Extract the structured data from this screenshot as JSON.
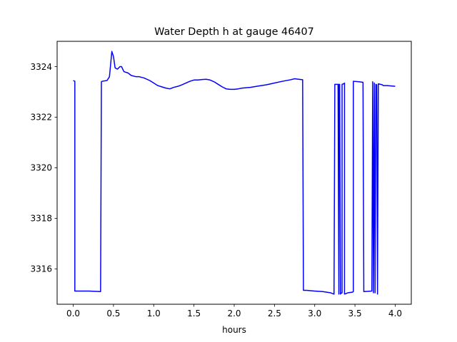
{
  "chart_data": {
    "type": "line",
    "title": "Water Depth h at gauge 46407",
    "xlabel": "hours",
    "ylabel": "",
    "xlim": [
      -0.2,
      4.2
    ],
    "ylim": [
      3314.6,
      3325.0
    ],
    "xticks": [
      0.0,
      0.5,
      1.0,
      1.5,
      2.0,
      2.5,
      3.0,
      3.5,
      4.0
    ],
    "xtick_labels": [
      "0.0",
      "0.5",
      "1.0",
      "1.5",
      "2.0",
      "2.5",
      "3.0",
      "3.5",
      "4.0"
    ],
    "yticks": [
      3316,
      3318,
      3320,
      3322,
      3324
    ],
    "ytick_labels": [
      "3316",
      "3318",
      "3320",
      "3322",
      "3324"
    ],
    "grid": false,
    "series": [
      {
        "color": "#0000ff",
        "x": [
          0.0,
          0.02,
          0.02,
          0.1,
          0.2,
          0.34,
          0.35,
          0.36,
          0.42,
          0.45,
          0.48,
          0.5,
          0.52,
          0.55,
          0.58,
          0.6,
          0.63,
          0.68,
          0.72,
          0.78,
          0.82,
          0.88,
          0.95,
          1.0,
          1.05,
          1.1,
          1.15,
          1.2,
          1.25,
          1.3,
          1.35,
          1.4,
          1.45,
          1.5,
          1.55,
          1.6,
          1.65,
          1.7,
          1.75,
          1.8,
          1.85,
          1.9,
          1.95,
          2.0,
          2.05,
          2.1,
          2.2,
          2.3,
          2.4,
          2.5,
          2.6,
          2.7,
          2.75,
          2.8,
          2.85,
          2.86,
          2.9,
          3.0,
          3.1,
          3.2,
          3.24,
          3.25,
          3.29,
          3.3,
          3.3,
          3.31,
          3.32,
          3.32,
          3.34,
          3.34,
          3.36,
          3.37,
          3.37,
          3.41,
          3.47,
          3.48,
          3.48,
          3.55,
          3.6,
          3.61,
          3.71,
          3.72,
          3.73,
          3.74,
          3.75,
          3.76,
          3.77,
          3.78,
          3.79,
          3.84,
          3.85,
          3.9,
          4.0
        ],
        "y": [
          3323.45,
          3323.42,
          3315.12,
          3315.12,
          3315.12,
          3315.1,
          3323.4,
          3323.42,
          3323.45,
          3323.6,
          3324.6,
          3324.4,
          3323.95,
          3323.9,
          3324.0,
          3324.0,
          3323.8,
          3323.75,
          3323.65,
          3323.6,
          3323.6,
          3323.55,
          3323.45,
          3323.35,
          3323.25,
          3323.2,
          3323.15,
          3323.12,
          3323.18,
          3323.22,
          3323.28,
          3323.35,
          3323.42,
          3323.47,
          3323.47,
          3323.49,
          3323.5,
          3323.47,
          3323.4,
          3323.3,
          3323.2,
          3323.12,
          3323.1,
          3323.1,
          3323.12,
          3323.15,
          3323.18,
          3323.23,
          3323.28,
          3323.35,
          3323.42,
          3323.48,
          3323.52,
          3323.5,
          3323.48,
          3315.15,
          3315.15,
          3315.12,
          3315.1,
          3315.05,
          3315.0,
          3323.3,
          3323.3,
          3315.0,
          3323.3,
          3323.3,
          3315.0,
          3315.02,
          3315.05,
          3323.3,
          3323.32,
          3323.35,
          3315.0,
          3315.05,
          3315.08,
          3315.1,
          3323.42,
          3323.4,
          3323.38,
          3315.1,
          3315.12,
          3323.4,
          3315.05,
          3323.35,
          3315.05,
          3323.3,
          3323.28,
          3315.0,
          3323.32,
          3323.28,
          3323.25,
          3323.25,
          3323.22
        ]
      }
    ]
  }
}
